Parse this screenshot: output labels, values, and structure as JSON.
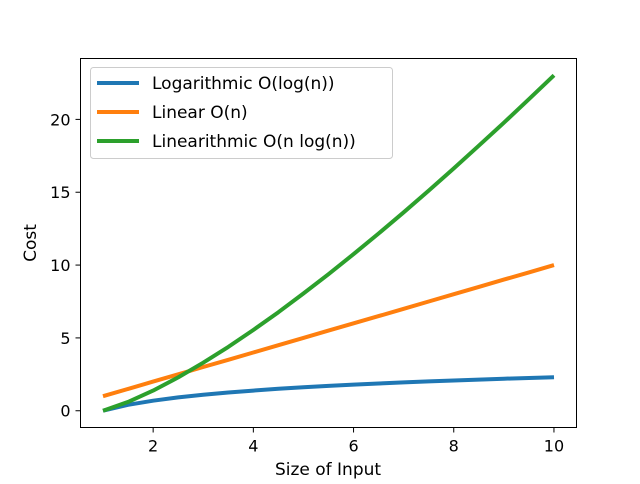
{
  "chart_data": {
    "type": "line",
    "title": "",
    "xlabel": "Size of Input",
    "ylabel": "Cost",
    "xlim": [
      0.55,
      10.45
    ],
    "ylim": [
      -1.15,
      24.18
    ],
    "xticks": [
      2,
      4,
      6,
      8,
      10
    ],
    "yticks": [
      0,
      5,
      10,
      15,
      20
    ],
    "grid": false,
    "legend_position": "top-left",
    "x": [
      1,
      1.5,
      2,
      2.5,
      3,
      3.5,
      4,
      4.5,
      5,
      5.5,
      6,
      6.5,
      7,
      7.5,
      8,
      8.5,
      9,
      9.5,
      10
    ],
    "series": [
      {
        "name": "Logarithmic O(log(n))",
        "color": "#1f77b4",
        "values": [
          0,
          0.4055,
          0.6931,
          0.9163,
          1.0986,
          1.2528,
          1.3863,
          1.5041,
          1.6094,
          1.7047,
          1.7918,
          1.8718,
          1.9459,
          2.0149,
          2.0794,
          2.1401,
          2.1972,
          2.2513,
          2.3026
        ]
      },
      {
        "name": "Linear O(n)",
        "color": "#ff7f0e",
        "values": [
          1,
          1.5,
          2,
          2.5,
          3,
          3.5,
          4,
          4.5,
          5,
          5.5,
          6,
          6.5,
          7,
          7.5,
          8,
          8.5,
          9,
          9.5,
          10
        ]
      },
      {
        "name": "Linearithmic O(n log(n))",
        "color": "#2ca02c",
        "values": [
          0,
          0.608,
          1.386,
          2.291,
          3.296,
          4.385,
          5.545,
          6.768,
          8.047,
          9.376,
          10.751,
          12.167,
          13.621,
          15.112,
          16.636,
          18.191,
          19.775,
          21.387,
          23.026
        ]
      }
    ]
  }
}
